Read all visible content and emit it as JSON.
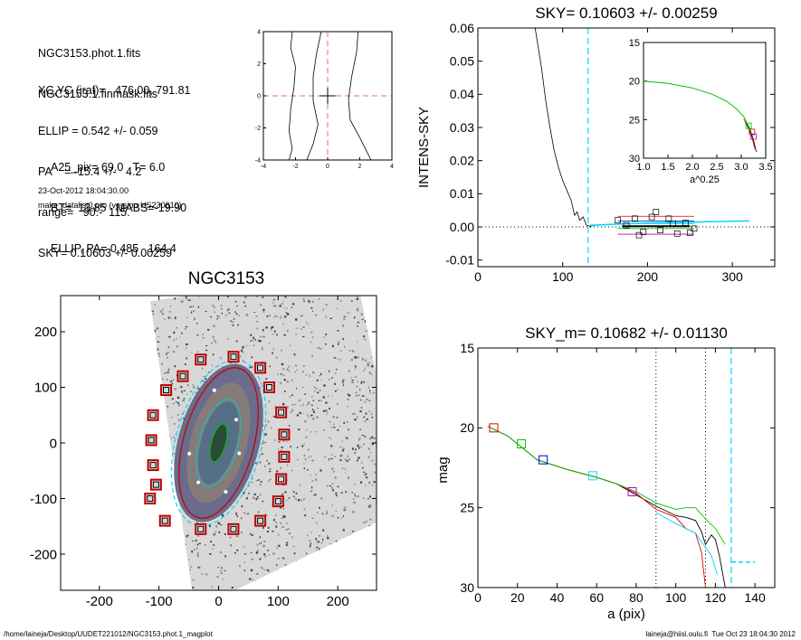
{
  "info": {
    "lines_a": [
      "NGC3153.phot.1.fits",
      "NGC3153.1.finmask.fits"
    ],
    "lines_b": [
      "XC,YC (iraf)=   476.00, 791.81",
      "ELLIP = 0.542 +/- 0.059",
      "PA    = -15.4 +/-   4.2",
      "range=   90.-  115.",
      "SKY= 0.10603 +/- 0.00259"
    ],
    "lines_c": [
      "A25_pix= 69.0   T= 6.0",
      "BT=  13.85   MABS=-19.90",
      "ELLIP, PA= 0.485   164.4"
    ],
    "date": "23-Oct-2012 18:04:30.00",
    "program": "make_datalist0.pro (version HS230610)"
  },
  "footer": {
    "left": "/home/laineja/Desktop/UUDET221012/NGC3153.phot.1_magplot",
    "right": "laineja@hiisi.oulu.fi  Tue Oct 23 18:04:30 2012"
  },
  "colors": {
    "sky_line": "#00d8ff",
    "red": "#e00000",
    "green": "#00c000",
    "blue": "#0000d0",
    "magenta": "#c000c0"
  },
  "chart_data": [
    {
      "type": "line",
      "title": "",
      "xlabel": "",
      "ylabel": "",
      "xlim": [
        -4,
        4
      ],
      "ylim": [
        -4,
        4
      ],
      "x_ticks": [
        "-4",
        "-2",
        "0",
        "2",
        "4"
      ],
      "y_ticks": [
        "-4",
        "-2",
        "0",
        "2",
        "4"
      ],
      "series": [
        {
          "values": [
            [
              -2.2,
              4
            ],
            [
              -2.3,
              3
            ],
            [
              -2.0,
              1.8
            ],
            [
              -2.1,
              0.5
            ],
            [
              -2.3,
              -0.8
            ],
            [
              -2.4,
              -2.2
            ],
            [
              -2.2,
              -3.3
            ],
            [
              -2.4,
              -4
            ]
          ]
        },
        {
          "values": [
            [
              -0.4,
              4
            ],
            [
              -0.7,
              2.6
            ],
            [
              -0.9,
              1.2
            ],
            [
              -0.9,
              -0.3
            ],
            [
              -0.6,
              -1.8
            ],
            [
              -0.9,
              -3.0
            ],
            [
              -1.3,
              -4
            ]
          ]
        },
        {
          "values": [
            [
              1.9,
              4
            ],
            [
              1.8,
              2.7
            ],
            [
              1.5,
              1.2
            ],
            [
              1.3,
              -0.2
            ],
            [
              1.4,
              -1.5
            ],
            [
              2.0,
              -2.6
            ],
            [
              2.4,
              -3.4
            ],
            [
              2.7,
              -4
            ]
          ]
        }
      ]
    },
    {
      "type": "line",
      "title": "SKY= 0.10603 +/- 0.00259",
      "xlabel": "",
      "ylabel": "INTENS-SKY",
      "xlim": [
        0,
        350
      ],
      "ylim": [
        -0.012,
        0.06
      ],
      "x_ticks": [
        "0",
        "100",
        "200",
        "300"
      ],
      "y_ticks": [
        "-0.01",
        "0.00",
        "0.01",
        "0.02",
        "0.03",
        "0.04",
        "0.05",
        "0.06"
      ],
      "sky_radius": 130,
      "profile": [
        [
          65,
          0.064
        ],
        [
          70,
          0.056
        ],
        [
          75,
          0.048
        ],
        [
          80,
          0.038
        ],
        [
          85,
          0.03
        ],
        [
          90,
          0.023
        ],
        [
          95,
          0.018
        ],
        [
          100,
          0.014
        ],
        [
          105,
          0.011
        ],
        [
          110,
          0.008
        ],
        [
          114,
          0.0035
        ],
        [
          117,
          0.0045
        ],
        [
          120,
          0.002
        ],
        [
          124,
          0.003
        ],
        [
          128,
          0.0005
        ],
        [
          132,
          0.0002
        ],
        [
          140,
          0.0006
        ],
        [
          160,
          0.0008
        ],
        [
          200,
          0.0012
        ],
        [
          240,
          0.0013
        ],
        [
          280,
          0.0016
        ],
        [
          320,
          0.0018
        ]
      ],
      "sky_boxes": [
        [
          165,
          0.002
        ],
        [
          175,
          0.0005
        ],
        [
          185,
          0.0025
        ],
        [
          195,
          -0.0015
        ],
        [
          205,
          0.003
        ],
        [
          215,
          -0.001
        ],
        [
          225,
          0.0025
        ],
        [
          235,
          -0.002
        ],
        [
          245,
          0.0012
        ],
        [
          255,
          -0.0005
        ],
        [
          190,
          -0.0025
        ],
        [
          210,
          0.0045
        ],
        [
          230,
          0.001
        ],
        [
          250,
          -0.0018
        ]
      ],
      "inset": {
        "xlabel": "a^0.25",
        "xlim": [
          1.0,
          3.5
        ],
        "ylim": [
          15,
          30
        ],
        "x_ticks": [
          "1.0",
          "1.5",
          "2.0",
          "2.5",
          "3.0",
          "3.5"
        ],
        "y_ticks": [
          "15",
          "20",
          "25",
          "30"
        ],
        "series": [
          {
            "name": "",
            "values": [
              [
                1.0,
                20.0
              ],
              [
                1.5,
                20.3
              ],
              [
                2.0,
                20.9
              ],
              [
                2.4,
                21.7
              ],
              [
                2.7,
                22.6
              ],
              [
                2.9,
                23.6
              ],
              [
                3.05,
                24.6
              ],
              [
                3.15,
                25.8
              ],
              [
                3.22,
                27.0
              ],
              [
                3.28,
                28.5
              ]
            ]
          }
        ]
      }
    },
    {
      "type": "scatter",
      "title": "NGC3153",
      "xlabel": "",
      "ylabel": "",
      "xlim": [
        -265,
        265
      ],
      "ylim": [
        -265,
        265
      ],
      "x_ticks": [
        "-200",
        "-100",
        "0",
        "100",
        "200"
      ],
      "y_ticks": [
        "-200",
        "-100",
        "0",
        "100",
        "200"
      ],
      "ellipse": {
        "a": 130,
        "b": 59,
        "pa": -15.4
      },
      "sky_boxes": [
        [
          -30,
          150
        ],
        [
          25,
          155
        ],
        [
          -60,
          120
        ],
        [
          70,
          135
        ],
        [
          -88,
          95
        ],
        [
          -110,
          50
        ],
        [
          -113,
          5
        ],
        [
          -110,
          -40
        ],
        [
          -105,
          -75
        ],
        [
          -115,
          -100
        ],
        [
          -90,
          -140
        ],
        [
          -30,
          -155
        ],
        [
          25,
          -155
        ],
        [
          70,
          -140
        ],
        [
          100,
          -105
        ],
        [
          105,
          -65
        ],
        [
          110,
          -25
        ],
        [
          110,
          15
        ],
        [
          105,
          55
        ],
        [
          85,
          100
        ]
      ]
    },
    {
      "type": "line",
      "title": "SKY_m=  0.10682 +/- 0.01130",
      "xlabel": "a (pix)",
      "ylabel": "mag",
      "xlim": [
        0,
        150
      ],
      "ylim": [
        30,
        15
      ],
      "x_ticks": [
        "0",
        "20",
        "40",
        "60",
        "80",
        "100",
        "120",
        "140"
      ],
      "y_ticks": [
        "15",
        "20",
        "25",
        "30"
      ],
      "range_lines": [
        90,
        115
      ],
      "sky_radius": 128,
      "series": [
        {
          "name": "",
          "color": "#000000",
          "values": [
            [
              5,
              19.9
            ],
            [
              15,
              20.5
            ],
            [
              30,
              22.0
            ],
            [
              45,
              22.6
            ],
            [
              60,
              23.1
            ],
            [
              70,
              23.5
            ],
            [
              80,
              24.2
            ],
            [
              90,
              24.9
            ],
            [
              100,
              25.5
            ],
            [
              105,
              25.6
            ],
            [
              110,
              25.8
            ],
            [
              113,
              26.5
            ],
            [
              115,
              27.3
            ],
            [
              118,
              26.7
            ],
            [
              120,
              27.0
            ],
            [
              122,
              28.0
            ],
            [
              125,
              30.0
            ]
          ]
        },
        {
          "name": "",
          "color": "#e00000",
          "values": [
            [
              5,
              19.9
            ],
            [
              15,
              20.5
            ],
            [
              30,
              22.0
            ],
            [
              45,
              22.6
            ],
            [
              60,
              23.1
            ],
            [
              70,
              23.5
            ],
            [
              80,
              24.1
            ],
            [
              90,
              25.1
            ],
            [
              100,
              25.6
            ],
            [
              105,
              26.3
            ],
            [
              110,
              26.6
            ],
            [
              113,
              27.8
            ],
            [
              115,
              30.0
            ]
          ]
        },
        {
          "name": "",
          "color": "#00c000",
          "values": [
            [
              5,
              19.9
            ],
            [
              15,
              20.5
            ],
            [
              30,
              22.0
            ],
            [
              45,
              22.6
            ],
            [
              60,
              23.1
            ],
            [
              70,
              23.5
            ],
            [
              80,
              24.0
            ],
            [
              90,
              24.7
            ],
            [
              100,
              25.1
            ],
            [
              105,
              25.0
            ],
            [
              110,
              25.0
            ],
            [
              115,
              25.7
            ],
            [
              120,
              26.3
            ],
            [
              125,
              27.3
            ]
          ]
        },
        {
          "name": "",
          "color": "#00d8ff",
          "values": [
            [
              90,
              25.3
            ],
            [
              100,
              26.0
            ],
            [
              110,
              26.6
            ],
            [
              118,
              28.0
            ],
            [
              121,
              29.2
            ]
          ]
        }
      ],
      "points": [
        [
          8,
          20.0,
          "#e00000"
        ],
        [
          22,
          21.0,
          "#00c000"
        ],
        [
          33,
          22.0,
          "#0000d0"
        ],
        [
          58,
          23.0,
          "#00d8ff"
        ],
        [
          78,
          24.0,
          "#c000c0"
        ]
      ],
      "sky_segment": {
        "x": [
          128,
          140
        ],
        "y": 28.4
      }
    }
  ]
}
